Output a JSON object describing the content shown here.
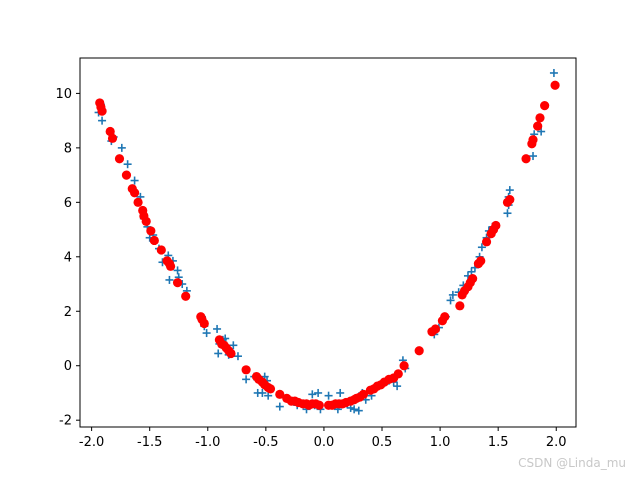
{
  "chart_data": {
    "type": "scatter",
    "title": "",
    "xlabel": "",
    "ylabel": "",
    "xlim": [
      -2.1,
      2.17
    ],
    "ylim": [
      -2.25,
      11.3
    ],
    "xticks": [
      "-2.0",
      "-1.5",
      "-1.0",
      "-0.5",
      "0.0",
      "0.5",
      "1.0",
      "1.5",
      "2.0"
    ],
    "xtick_values": [
      -2.0,
      -1.5,
      -1.0,
      -0.5,
      0.0,
      0.5,
      1.0,
      1.5,
      2.0
    ],
    "yticks": [
      "-2",
      "0",
      "2",
      "4",
      "6",
      "8",
      "10"
    ],
    "ytick_values": [
      -2,
      0,
      2,
      4,
      6,
      8,
      10
    ],
    "grid": false,
    "series": [
      {
        "marker": "plus",
        "color": "#1f77b4",
        "x": [
          -1.94,
          -1.92,
          -1.91,
          -1.83,
          -1.81,
          -1.74,
          -1.69,
          -1.63,
          -1.58,
          -1.55,
          -1.52,
          -1.5,
          -1.47,
          -1.42,
          -1.39,
          -1.34,
          -1.33,
          -1.3,
          -1.26,
          -1.25,
          -1.22,
          -1.18,
          -1.05,
          -1.03,
          -1.01,
          -0.92,
          -0.91,
          -0.9,
          -0.87,
          -0.85,
          -0.84,
          -0.82,
          -0.8,
          -0.78,
          -0.74,
          -0.67,
          -0.6,
          -0.57,
          -0.53,
          -0.51,
          -0.49,
          -0.48,
          -0.38,
          -0.31,
          -0.23,
          -0.15,
          -0.1,
          -0.08,
          -0.05,
          -0.03,
          0.04,
          0.12,
          0.14,
          0.2,
          0.23,
          0.26,
          0.3,
          0.33,
          0.36,
          0.41,
          0.44,
          0.48,
          0.52,
          0.56,
          0.6,
          0.63,
          0.68,
          0.7,
          0.95,
          0.99,
          1.05,
          1.09,
          1.11,
          1.16,
          1.2,
          1.24,
          1.27,
          1.3,
          1.34,
          1.36,
          1.4,
          1.42,
          1.45,
          1.58,
          1.59,
          1.59,
          1.6,
          1.8,
          1.81,
          1.87,
          1.98
        ],
        "y": [
          9.3,
          9.6,
          9.0,
          8.25,
          8.4,
          8.0,
          7.4,
          6.8,
          6.2,
          5.4,
          5.1,
          4.7,
          4.8,
          4.3,
          3.8,
          4.05,
          3.15,
          3.85,
          3.5,
          3.25,
          3.0,
          2.75,
          1.8,
          1.45,
          1.2,
          1.35,
          0.45,
          0.8,
          0.95,
          1.0,
          0.75,
          0.4,
          0.5,
          0.75,
          0.35,
          -0.5,
          -0.4,
          -1.0,
          -1.0,
          -0.4,
          -0.55,
          -1.1,
          -1.5,
          -1.2,
          -1.45,
          -1.6,
          -1.05,
          -1.45,
          -1.0,
          -1.6,
          -1.1,
          -1.6,
          -1.0,
          -1.4,
          -1.55,
          -1.6,
          -1.65,
          -1.0,
          -1.25,
          -1.1,
          -0.8,
          -0.7,
          -0.6,
          -0.55,
          -0.6,
          -0.75,
          0.2,
          -0.1,
          1.15,
          1.4,
          1.8,
          2.4,
          2.6,
          2.7,
          2.95,
          3.3,
          3.45,
          3.6,
          4.0,
          4.35,
          4.7,
          4.95,
          5.1,
          5.6,
          5.9,
          6.2,
          6.45,
          7.7,
          8.5,
          8.6,
          10.75
        ],
        "name": ""
      },
      {
        "marker": "circle",
        "color": "#ff0000",
        "x": [
          -1.93,
          -1.92,
          -1.91,
          -1.84,
          -1.82,
          -1.76,
          -1.7,
          -1.65,
          -1.63,
          -1.6,
          -1.56,
          -1.55,
          -1.53,
          -1.49,
          -1.46,
          -1.4,
          -1.35,
          -1.33,
          -1.32,
          -1.26,
          -1.19,
          -1.06,
          -1.05,
          -1.03,
          -0.9,
          -0.88,
          -0.86,
          -0.84,
          -0.82,
          -0.8,
          -0.67,
          -0.58,
          -0.56,
          -0.53,
          -0.51,
          -0.48,
          -0.46,
          -0.38,
          -0.32,
          -0.28,
          -0.25,
          -0.22,
          -0.18,
          -0.15,
          -0.13,
          -0.1,
          -0.07,
          -0.04,
          0.04,
          0.07,
          0.1,
          0.13,
          0.16,
          0.19,
          0.23,
          0.26,
          0.28,
          0.31,
          0.34,
          0.4,
          0.43,
          0.46,
          0.49,
          0.52,
          0.56,
          0.6,
          0.64,
          0.69,
          0.82,
          0.93,
          0.96,
          1.02,
          1.04,
          1.17,
          1.19,
          1.21,
          1.24,
          1.26,
          1.28,
          1.33,
          1.35,
          1.4,
          1.44,
          1.46,
          1.48,
          1.58,
          1.6,
          1.74,
          1.79,
          1.8,
          1.84,
          1.86,
          1.9,
          1.99
        ],
        "y": [
          9.65,
          9.5,
          9.35,
          8.6,
          8.35,
          7.6,
          7.0,
          6.5,
          6.35,
          6.0,
          5.7,
          5.5,
          5.3,
          4.95,
          4.6,
          4.25,
          3.85,
          3.75,
          3.65,
          3.05,
          2.55,
          1.8,
          1.7,
          1.55,
          0.95,
          0.8,
          0.75,
          0.65,
          0.55,
          0.45,
          -0.15,
          -0.4,
          -0.5,
          -0.6,
          -0.7,
          -0.8,
          -0.85,
          -1.05,
          -1.2,
          -1.3,
          -1.3,
          -1.35,
          -1.4,
          -1.4,
          -1.45,
          -1.4,
          -1.4,
          -1.45,
          -1.45,
          -1.45,
          -1.4,
          -1.4,
          -1.4,
          -1.35,
          -1.3,
          -1.25,
          -1.2,
          -1.15,
          -1.05,
          -0.9,
          -0.85,
          -0.75,
          -0.7,
          -0.6,
          -0.5,
          -0.45,
          -0.3,
          0.0,
          0.55,
          1.25,
          1.35,
          1.65,
          1.8,
          2.2,
          2.6,
          2.75,
          2.9,
          3.05,
          3.2,
          3.75,
          3.85,
          4.55,
          4.85,
          5.0,
          5.15,
          6.0,
          6.1,
          7.6,
          8.15,
          8.3,
          8.8,
          9.1,
          9.55,
          10.3
        ],
        "name": ""
      }
    ]
  },
  "watermark": "CSDN @Linda_mu"
}
